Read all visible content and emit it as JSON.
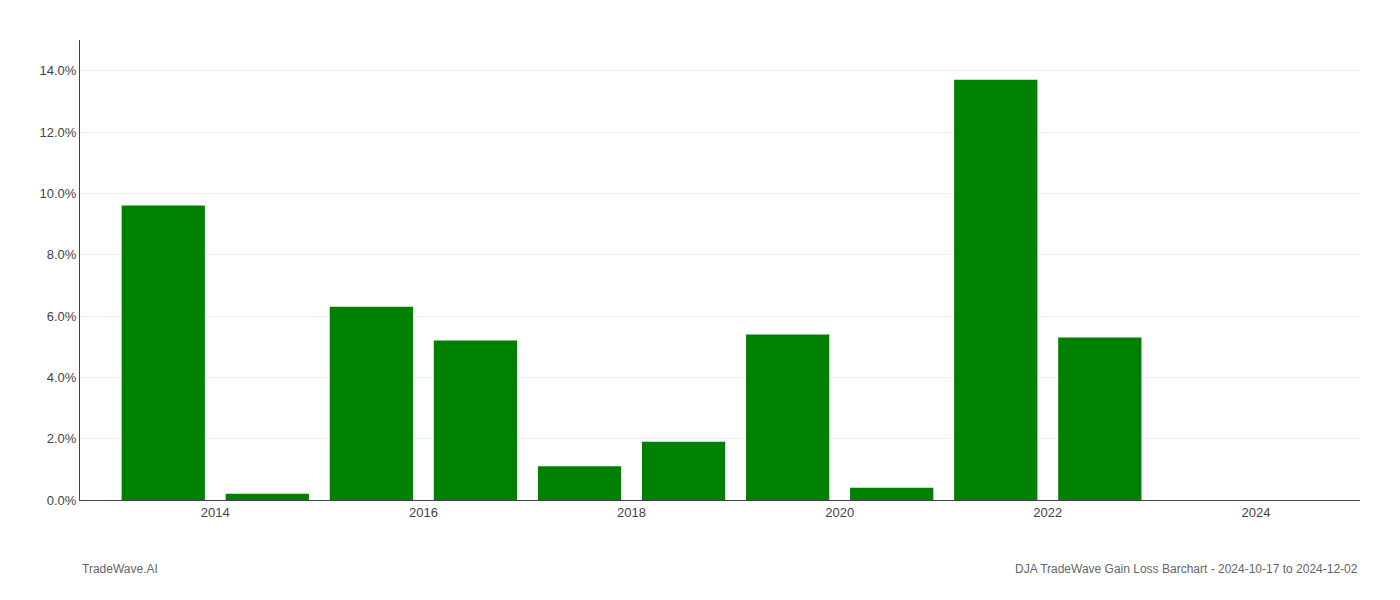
{
  "chart_data": {
    "type": "bar",
    "x": [
      2014,
      2015,
      2016,
      2017,
      2018,
      2019,
      2020,
      2021,
      2022,
      2023,
      2024
    ],
    "values": [
      0.096,
      0.002,
      0.063,
      0.052,
      0.011,
      0.019,
      0.054,
      0.004,
      0.137,
      0.053,
      0.0
    ],
    "color": "#008000",
    "xlim": [
      2013.2,
      2025.5
    ],
    "xticks": [
      {
        "value": 2014.5,
        "label": "2014"
      },
      {
        "value": 2016.5,
        "label": "2016"
      },
      {
        "value": 2018.5,
        "label": "2018"
      },
      {
        "value": 2020.5,
        "label": "2020"
      },
      {
        "value": 2022.5,
        "label": "2022"
      },
      {
        "value": 2024.5,
        "label": "2024"
      }
    ],
    "ylim": [
      0,
      0.15
    ],
    "yticks": [
      {
        "value": 0.0,
        "label": "0.0%"
      },
      {
        "value": 0.02,
        "label": "2.0%"
      },
      {
        "value": 0.04,
        "label": "4.0%"
      },
      {
        "value": 0.06,
        "label": "6.0%"
      },
      {
        "value": 0.08,
        "label": "8.0%"
      },
      {
        "value": 0.1,
        "label": "10.0%"
      },
      {
        "value": 0.12,
        "label": "12.0%"
      },
      {
        "value": 0.14,
        "label": "14.0%"
      }
    ],
    "grid": true,
    "annotations": [
      "TradeWave.AI",
      "DJA TradeWave Gain Loss Barchart - 2024-10-17 to 2024-12-02"
    ]
  }
}
